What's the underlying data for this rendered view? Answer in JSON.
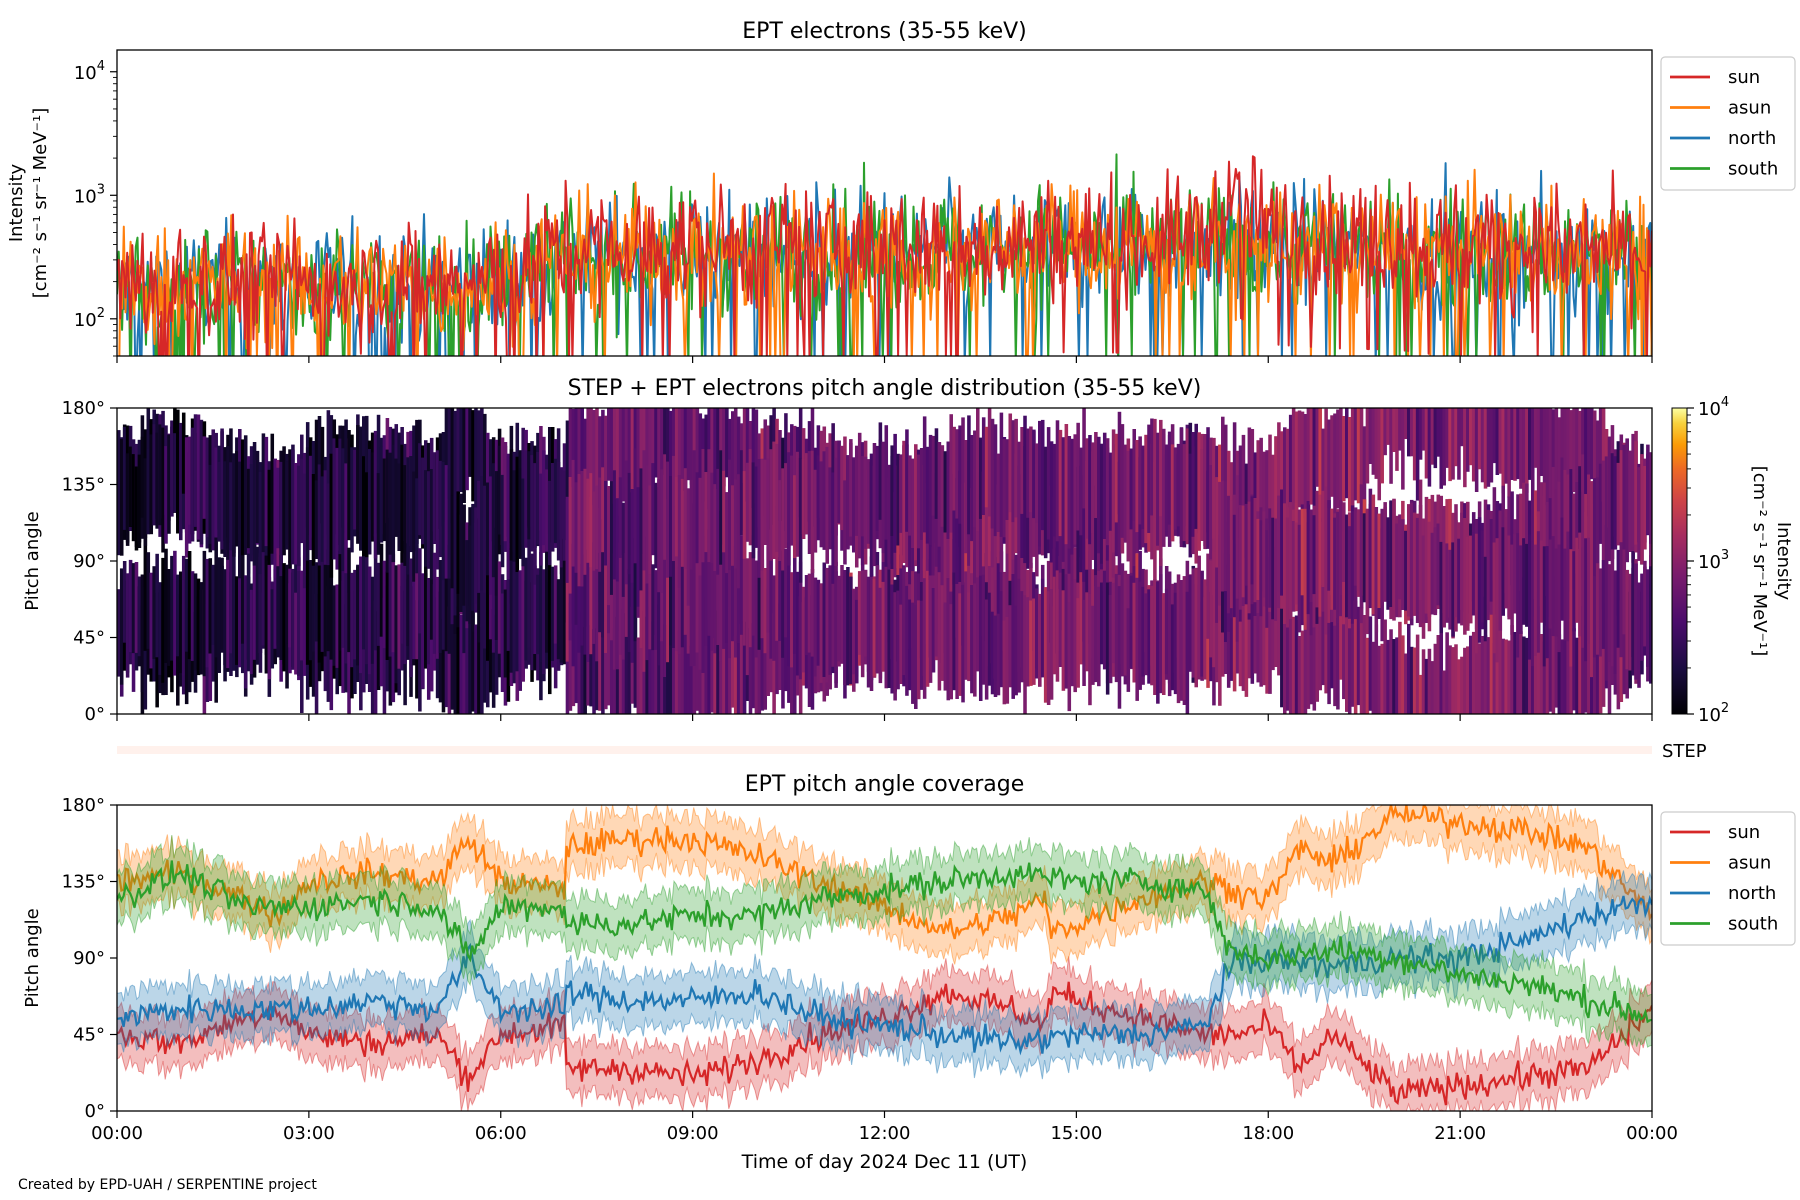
{
  "credit": "Created by EPD-UAH / SERPENTINE project",
  "legend_entries": [
    {
      "name": "sun",
      "color": "#d62728"
    },
    {
      "name": "asun",
      "color": "#ff7f0e"
    },
    {
      "name": "north",
      "color": "#1f77b4"
    },
    {
      "name": "south",
      "color": "#2ca02c"
    }
  ],
  "chart_data": [
    {
      "type": "line",
      "title": "EPT electrons (35-55 keV)",
      "ylabel_line1": "Intensity",
      "ylabel_line2": "[cm⁻² s⁻¹ sr⁻¹ MeV⁻¹]",
      "yscale": "log",
      "ylim": [
        50,
        15000
      ],
      "yticks": [
        {
          "value": 100,
          "base": "10",
          "exp": "2"
        },
        {
          "value": 1000,
          "base": "10",
          "exp": "3"
        },
        {
          "value": 10000,
          "base": "10",
          "exp": "4"
        }
      ],
      "xlim_hours": [
        0,
        24
      ],
      "x_tick_labels_shown": false,
      "legend_location": "outside upper right",
      "series": [
        {
          "name": "sun",
          "color": "#d62728",
          "x_hours": [
            0,
            1,
            2,
            3,
            4,
            5,
            6,
            7,
            8,
            9,
            10,
            11,
            12,
            13,
            14,
            15,
            16,
            17,
            17.5,
            18,
            19,
            20,
            21,
            22,
            23,
            24
          ],
          "values": [
            180,
            200,
            220,
            200,
            210,
            200,
            210,
            380,
            360,
            380,
            400,
            390,
            420,
            410,
            430,
            450,
            440,
            480,
            900,
            520,
            480,
            470,
            400,
            380,
            360,
            350
          ]
        },
        {
          "name": "asun",
          "color": "#ff7f0e",
          "x_hours": [
            0,
            1,
            2,
            3,
            4,
            5,
            6,
            7,
            8,
            9,
            10,
            11,
            12,
            13,
            14,
            15,
            16,
            17,
            18,
            19,
            20,
            21,
            22,
            23,
            24
          ],
          "values": [
            170,
            190,
            200,
            190,
            200,
            190,
            200,
            320,
            330,
            350,
            360,
            360,
            380,
            370,
            390,
            400,
            410,
            420,
            400,
            390,
            380,
            370,
            350,
            340,
            330
          ]
        },
        {
          "name": "north",
          "color": "#1f77b4",
          "x_hours": [
            0,
            1,
            2,
            3,
            4,
            5,
            6,
            7,
            8,
            9,
            10,
            11,
            12,
            13,
            14,
            15,
            16,
            17,
            18,
            19,
            20,
            21,
            22,
            23,
            24
          ],
          "values": [
            160,
            180,
            190,
            180,
            190,
            180,
            190,
            300,
            320,
            340,
            350,
            350,
            370,
            360,
            380,
            390,
            400,
            410,
            390,
            380,
            370,
            360,
            340,
            330,
            320
          ]
        },
        {
          "name": "south",
          "color": "#2ca02c",
          "x_hours": [
            0,
            1,
            2,
            3,
            4,
            5,
            6,
            7,
            8,
            9,
            10,
            11,
            12,
            13,
            14,
            15,
            16,
            17,
            18,
            19,
            20,
            21,
            22,
            23,
            24
          ],
          "values": [
            165,
            185,
            195,
            185,
            195,
            185,
            195,
            310,
            325,
            345,
            355,
            355,
            375,
            365,
            385,
            395,
            405,
            415,
            395,
            385,
            375,
            365,
            345,
            335,
            325
          ]
        }
      ]
    },
    {
      "type": "heatmap",
      "title": "STEP + EPT electrons pitch angle distribution (35-55 keV)",
      "ylabel": "Pitch angle",
      "ylim_deg": [
        0,
        180
      ],
      "yticks": [
        "0°",
        "45°",
        "90°",
        "135°",
        "180°"
      ],
      "xlim_hours": [
        0,
        24
      ],
      "x_tick_labels_shown": false,
      "colorbar": {
        "label_line1": "Intensity",
        "label_line2": "[cm⁻² s⁻¹ sr⁻¹ MeV⁻¹]",
        "scale": "log",
        "range": [
          100,
          10000
        ],
        "ticks": [
          {
            "value": 100,
            "base": "10",
            "exp": "2"
          },
          {
            "value": 1000,
            "base": "10",
            "exp": "3"
          },
          {
            "value": 10000,
            "base": "10",
            "exp": "4"
          }
        ],
        "colormap": "inferno"
      },
      "note": "Coloured bands follow the EPT sensor pitch-angle coverage; background is white (no data) between bands.",
      "intensity_by_hour": [
        150,
        170,
        180,
        170,
        180,
        170,
        180,
        360,
        370,
        390,
        400,
        400,
        420,
        410,
        430,
        440,
        450,
        470,
        520,
        470,
        460,
        450,
        420,
        400,
        390
      ]
    },
    {
      "type": "bar",
      "label": "STEP",
      "note": "Thin, very faint strip spanning the full time range (no visible STEP data)."
    },
    {
      "type": "area",
      "title": "EPT pitch angle coverage",
      "ylabel": "Pitch angle",
      "xlabel": "Time of day 2024 Dec 11 (UT)",
      "ylim_deg": [
        0,
        180
      ],
      "yticks": [
        "0°",
        "45°",
        "90°",
        "135°",
        "180°"
      ],
      "xlim_hours": [
        0,
        24
      ],
      "x_ticks": [
        "00:00",
        "03:00",
        "06:00",
        "09:00",
        "12:00",
        "15:00",
        "18:00",
        "21:00",
        "00:00"
      ],
      "legend_location": "outside upper right",
      "band_half_width_deg": 15,
      "series": [
        {
          "name": "sun",
          "color": "#d62728",
          "x_hours": [
            0,
            1,
            2,
            2.5,
            3,
            4,
            5,
            5.5,
            6,
            7,
            7.01,
            8,
            9,
            10,
            11,
            12,
            13,
            14,
            14.5,
            14.6,
            15,
            16,
            17,
            17.5,
            18,
            18.5,
            19,
            20,
            21,
            22,
            23,
            24
          ],
          "values": [
            45,
            40,
            55,
            60,
            45,
            40,
            45,
            20,
            45,
            50,
            25,
            25,
            20,
            30,
            45,
            55,
            70,
            60,
            50,
            70,
            65,
            55,
            45,
            45,
            50,
            25,
            45,
            10,
            15,
            20,
            25,
            60
          ]
        },
        {
          "name": "asun",
          "color": "#ff7f0e",
          "x_hours": [
            0,
            1,
            2,
            2.5,
            3,
            4,
            5,
            5.5,
            6,
            7,
            7.01,
            8,
            9,
            10,
            11,
            12,
            13,
            14,
            14.5,
            14.6,
            15,
            16,
            17,
            17.5,
            18,
            18.5,
            19,
            20,
            21,
            22,
            23,
            24
          ],
          "values": [
            135,
            140,
            125,
            115,
            135,
            140,
            135,
            160,
            135,
            130,
            155,
            160,
            160,
            150,
            135,
            120,
            105,
            115,
            125,
            105,
            110,
            125,
            135,
            130,
            125,
            155,
            145,
            175,
            170,
            165,
            155,
            115
          ]
        },
        {
          "name": "north",
          "color": "#1f77b4",
          "x_hours": [
            0,
            1,
            2,
            3,
            4,
            5,
            5.5,
            6,
            7,
            7.01,
            8,
            9,
            10,
            11,
            12,
            13,
            14,
            15,
            16,
            17,
            17.4,
            18,
            19,
            20,
            21,
            22,
            23,
            24
          ],
          "values": [
            55,
            60,
            60,
            60,
            65,
            60,
            90,
            60,
            60,
            70,
            65,
            65,
            70,
            55,
            50,
            45,
            40,
            45,
            45,
            50,
            85,
            90,
            85,
            90,
            90,
            100,
            115,
            125
          ]
        },
        {
          "name": "south",
          "color": "#2ca02c",
          "x_hours": [
            0,
            1,
            2,
            3,
            4,
            5,
            5.5,
            6,
            7,
            7.01,
            8,
            9,
            10,
            11,
            12,
            13,
            14,
            15,
            16,
            17,
            17.4,
            18,
            19,
            20,
            21,
            22,
            23,
            24
          ],
          "values": [
            125,
            140,
            120,
            120,
            125,
            120,
            90,
            120,
            120,
            110,
            110,
            115,
            115,
            125,
            130,
            135,
            140,
            135,
            135,
            130,
            95,
            90,
            95,
            90,
            80,
            75,
            65,
            55
          ]
        }
      ]
    }
  ]
}
